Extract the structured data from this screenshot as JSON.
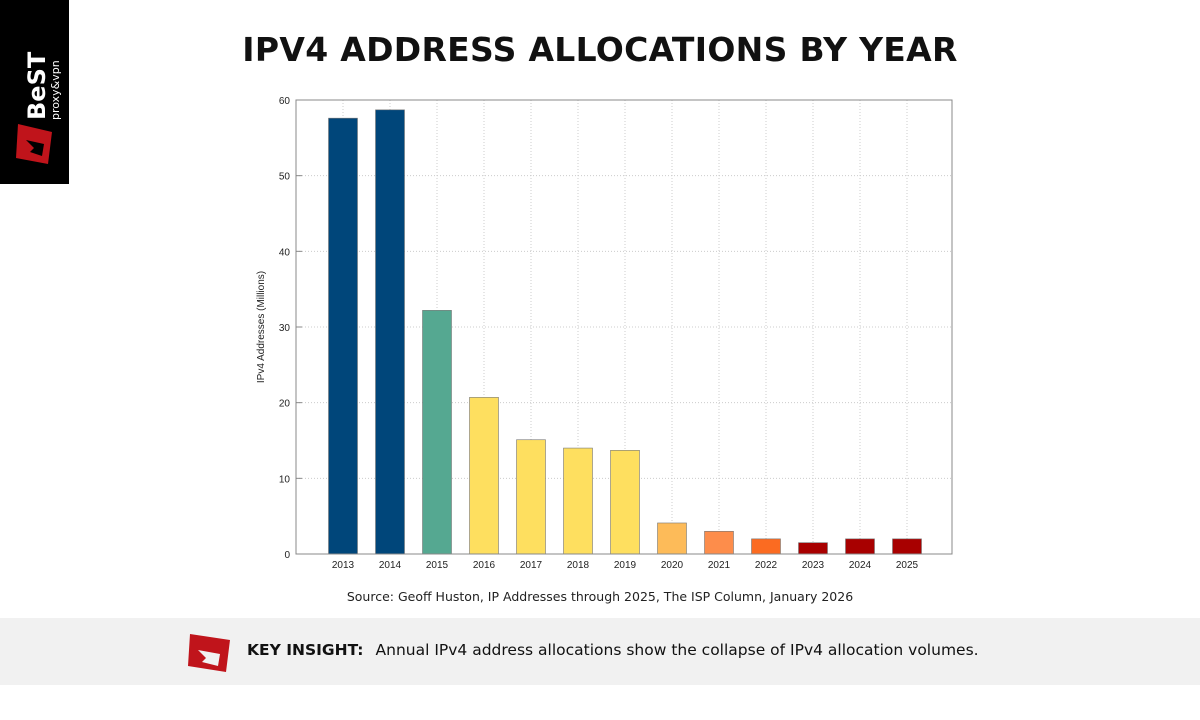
{
  "logo": {
    "text": "BeST",
    "subtext": "proxy&vpn"
  },
  "header": {
    "title": "IPV4 ADDRESS ALLOCATIONS BY YEAR"
  },
  "chart_data": {
    "type": "bar",
    "title": "",
    "xlabel": "",
    "ylabel": "IPv4 Addresses (Millions)",
    "categories": [
      "2013",
      "2014",
      "2015",
      "2016",
      "2017",
      "2018",
      "2019",
      "2020",
      "2021",
      "2022",
      "2023",
      "2024",
      "2025"
    ],
    "values": [
      57.6,
      58.7,
      32.2,
      20.7,
      15.1,
      14.0,
      13.7,
      4.1,
      3.0,
      2.0,
      1.5,
      2.0,
      2.0
    ],
    "colors": [
      "#00467a",
      "#00467a",
      "#55a891",
      "#fedf5f",
      "#fedf5f",
      "#fedf5f",
      "#fedf5f",
      "#fdbb59",
      "#fd8d4b",
      "#fb6b21",
      "#a80000",
      "#a80000",
      "#a80000"
    ],
    "ylim": [
      0,
      60
    ],
    "yticks": [
      0,
      10,
      20,
      30,
      40,
      50,
      60
    ],
    "grid": true
  },
  "source": "Source: Geoff Huston, IP Addresses through 2025, The ISP Column, January 2026",
  "insight": {
    "label": "KEY INSIGHT:",
    "text": "Annual IPv4 address allocations show the collapse of IPv4 allocation volumes."
  },
  "colors": {
    "brand_red": "#c0141b",
    "insight_bg": "#f1f1f1"
  }
}
